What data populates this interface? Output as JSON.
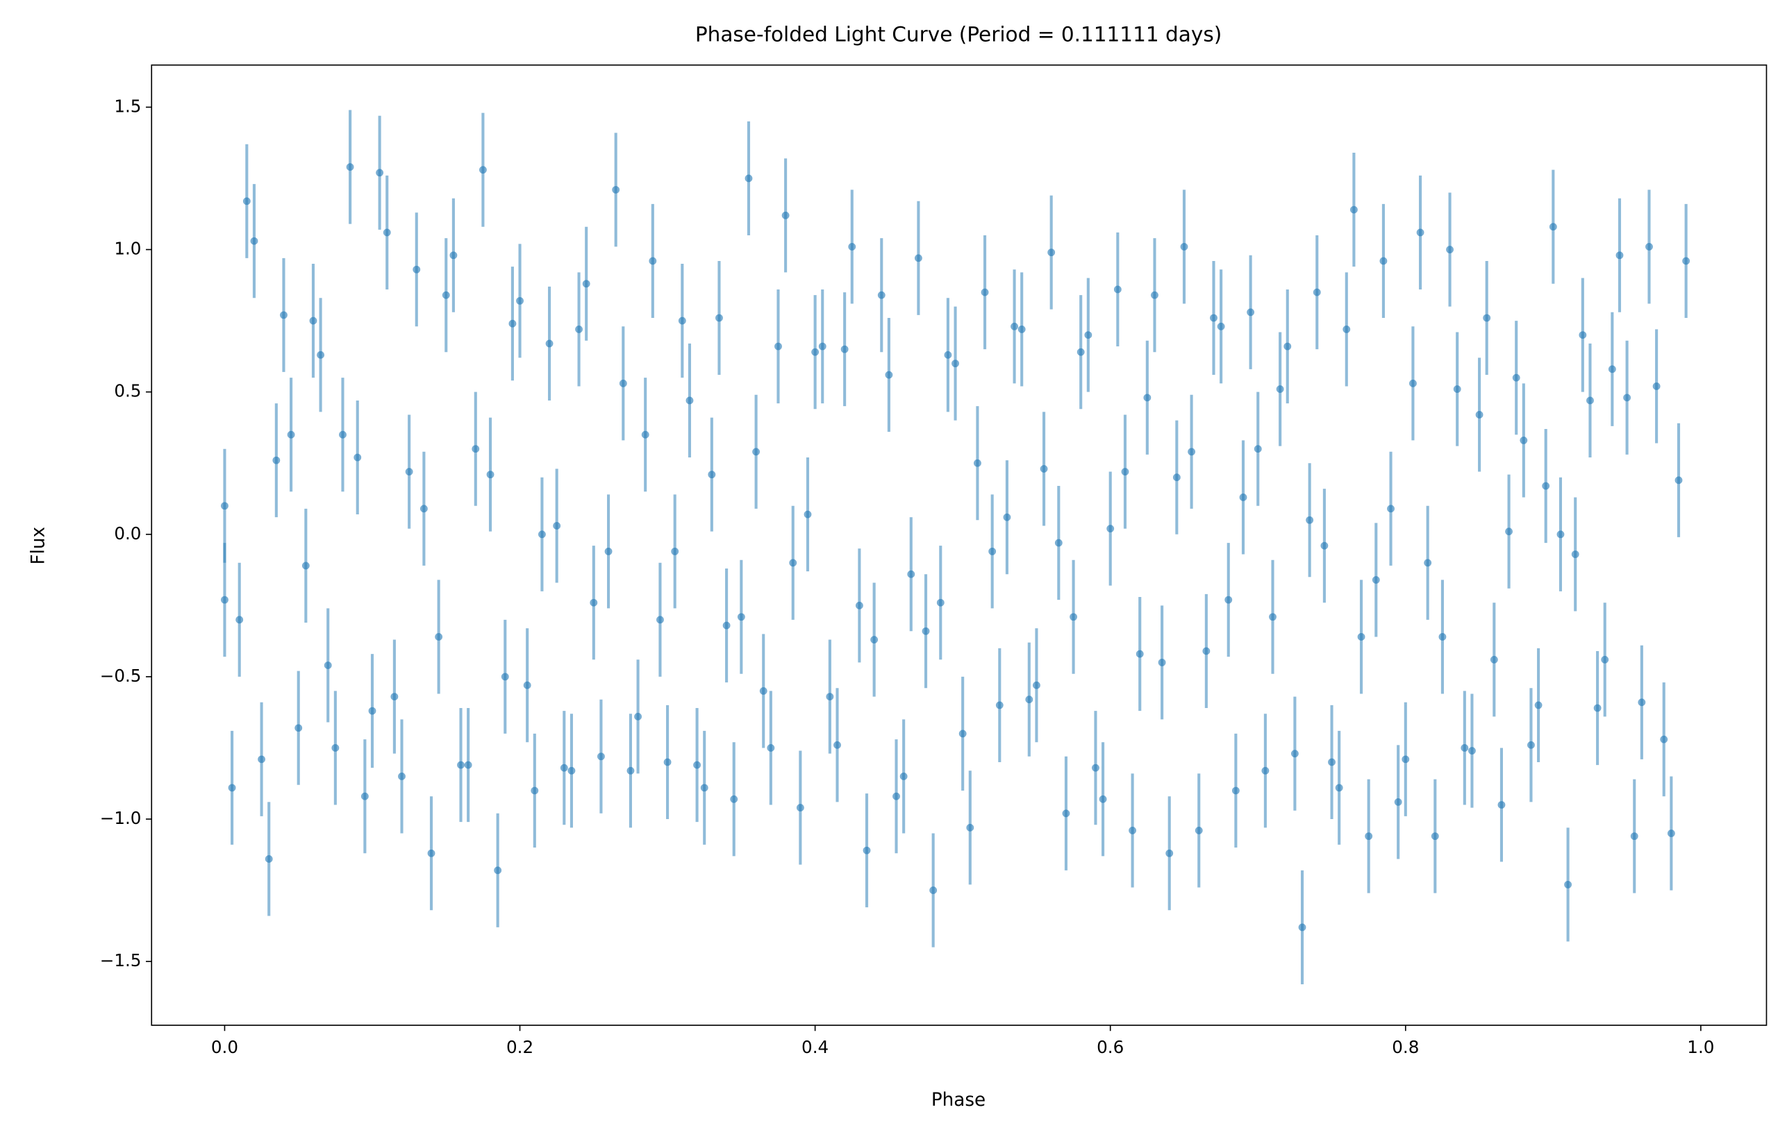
{
  "chart_data": {
    "type": "errorbar",
    "title": "Phase-folded Light Curve (Period = 0.111111 days)",
    "xlabel": "Phase",
    "ylabel": "Flux",
    "xlim": [
      -0.0495,
      1.0445
    ],
    "ylim": [
      -1.724,
      1.648
    ],
    "xticks": [
      {
        "value": 0,
        "label": "0.0"
      },
      {
        "value": 0.2,
        "label": "0.2"
      },
      {
        "value": 0.4,
        "label": "0.4"
      },
      {
        "value": 0.6,
        "label": "0.6"
      },
      {
        "value": 0.8,
        "label": "0.8"
      },
      {
        "value": 1,
        "label": "1.0"
      }
    ],
    "yticks": [
      {
        "value": -1.5,
        "label": "−1.5"
      },
      {
        "value": -1,
        "label": "−1.0"
      },
      {
        "value": -0.5,
        "label": "−0.5"
      },
      {
        "value": 0,
        "label": "0.0"
      },
      {
        "value": 0.5,
        "label": "0.5"
      },
      {
        "value": 1,
        "label": "1.0"
      },
      {
        "value": 1.5,
        "label": "1.5"
      }
    ],
    "series": [
      {
        "color": "#1f77b4",
        "yerr": 0.2,
        "x": [
          0,
          0,
          0.005,
          0.01,
          0.015,
          0.02,
          0.025,
          0.03,
          0.035,
          0.04,
          0.045,
          0.05,
          0.055,
          0.06,
          0.065,
          0.07,
          0.075,
          0.08,
          0.085,
          0.09,
          0.095,
          0.1,
          0.105,
          0.11,
          0.115,
          0.12,
          0.125,
          0.13,
          0.135,
          0.14,
          0.145,
          0.15,
          0.155,
          0.16,
          0.165,
          0.17,
          0.175,
          0.18,
          0.185,
          0.19,
          0.195,
          0.2,
          0.205,
          0.21,
          0.215,
          0.22,
          0.225,
          0.23,
          0.235,
          0.24,
          0.245,
          0.25,
          0.255,
          0.26,
          0.265,
          0.27,
          0.275,
          0.28,
          0.285,
          0.29,
          0.295,
          0.3,
          0.305,
          0.31,
          0.315,
          0.32,
          0.325,
          0.33,
          0.335,
          0.34,
          0.345,
          0.35,
          0.355,
          0.36,
          0.365,
          0.37,
          0.375,
          0.38,
          0.385,
          0.39,
          0.395,
          0.4,
          0.405,
          0.41,
          0.415,
          0.42,
          0.425,
          0.43,
          0.435,
          0.44,
          0.445,
          0.45,
          0.455,
          0.46,
          0.465,
          0.47,
          0.475,
          0.48,
          0.485,
          0.49,
          0.495,
          0.5,
          0.505,
          0.51,
          0.515,
          0.52,
          0.525,
          0.53,
          0.535,
          0.54,
          0.545,
          0.55,
          0.555,
          0.56,
          0.565,
          0.57,
          0.575,
          0.58,
          0.585,
          0.59,
          0.595,
          0.6,
          0.605,
          0.61,
          0.615,
          0.62,
          0.625,
          0.63,
          0.635,
          0.64,
          0.645,
          0.65,
          0.655,
          0.66,
          0.665,
          0.67,
          0.675,
          0.68,
          0.685,
          0.69,
          0.695,
          0.7,
          0.705,
          0.71,
          0.715,
          0.72,
          0.725,
          0.73,
          0.735,
          0.74,
          0.745,
          0.75,
          0.755,
          0.76,
          0.765,
          0.77,
          0.775,
          0.78,
          0.785,
          0.79,
          0.795,
          0.8,
          0.805,
          0.81,
          0.815,
          0.82,
          0.825,
          0.83,
          0.835,
          0.84,
          0.845,
          0.85,
          0.855,
          0.86,
          0.865,
          0.87,
          0.875,
          0.88,
          0.885,
          0.89,
          0.895,
          0.9,
          0.905,
          0.91,
          0.915,
          0.92,
          0.925,
          0.93,
          0.935,
          0.94,
          0.945,
          0.95,
          0.955,
          0.96,
          0.965,
          0.97,
          0.975,
          0.98,
          0.985,
          0.99
        ],
        "values": [
          0.1,
          -0.23,
          -0.89,
          -0.3,
          1.17,
          1.03,
          -0.79,
          -1.14,
          0.26,
          0.77,
          0.35,
          -0.68,
          -0.11,
          0.75,
          0.63,
          -0.46,
          -0.75,
          0.35,
          1.29,
          0.27,
          -0.92,
          -0.62,
          1.27,
          1.06,
          -0.57,
          -0.85,
          0.22,
          0.93,
          0.09,
          -1.12,
          -0.36,
          0.84,
          0.98,
          -0.81,
          -0.81,
          0.3,
          1.28,
          0.21,
          -1.18,
          -0.5,
          0.74,
          0.82,
          -0.53,
          -0.9,
          0.0,
          0.67,
          0.03,
          -0.82,
          -0.83,
          0.72,
          0.88,
          -0.24,
          -0.78,
          -0.06,
          1.21,
          0.53,
          -0.83,
          -0.64,
          0.35,
          0.96,
          -0.3,
          -0.8,
          -0.06,
          0.75,
          0.47,
          -0.81,
          -0.89,
          0.21,
          0.76,
          -0.32,
          -0.93,
          -0.29,
          1.25,
          0.29,
          -0.55,
          -0.75,
          0.66,
          1.12,
          -0.1,
          -0.96,
          0.07,
          0.64,
          0.66,
          -0.57,
          -0.74,
          0.65,
          1.01,
          -0.25,
          -1.11,
          -0.37,
          0.84,
          0.56,
          -0.92,
          -0.85,
          -0.14,
          0.97,
          -0.34,
          -1.25,
          -0.24,
          0.63,
          0.6,
          -0.7,
          -1.03,
          0.25,
          0.85,
          -0.06,
          -0.6,
          0.06,
          0.73,
          0.72,
          -0.58,
          -0.53,
          0.23,
          0.99,
          -0.03,
          -0.98,
          -0.29,
          0.64,
          0.7,
          -0.82,
          -0.93,
          0.02,
          0.86,
          0.22,
          -1.04,
          -0.42,
          0.48,
          0.84,
          -0.45,
          -1.12,
          0.2,
          1.01,
          0.29,
          -1.04,
          -0.41,
          0.76,
          0.73,
          -0.23,
          -0.9,
          0.13,
          0.78,
          0.3,
          -0.83,
          -0.29,
          0.51,
          0.66,
          -0.77,
          -1.38,
          0.05,
          0.85,
          -0.04,
          -0.8,
          -0.89,
          0.72,
          1.14,
          -0.36,
          -1.06,
          -0.16,
          0.96,
          0.09,
          -0.94,
          -0.79,
          0.53,
          1.06,
          -0.1,
          -1.06,
          -0.36,
          1.0,
          0.51,
          -0.75,
          -0.76,
          0.42,
          0.76,
          -0.44,
          -0.95,
          0.01,
          0.55,
          0.33,
          -0.74,
          -0.6,
          0.17,
          1.08,
          0.0,
          -1.23,
          -0.07,
          0.7,
          0.47,
          -0.61,
          -0.44,
          0.58,
          0.98,
          0.48,
          -1.06,
          -0.59,
          1.01,
          0.52,
          -0.72,
          -1.05,
          0.19,
          0.96
        ]
      }
    ]
  }
}
